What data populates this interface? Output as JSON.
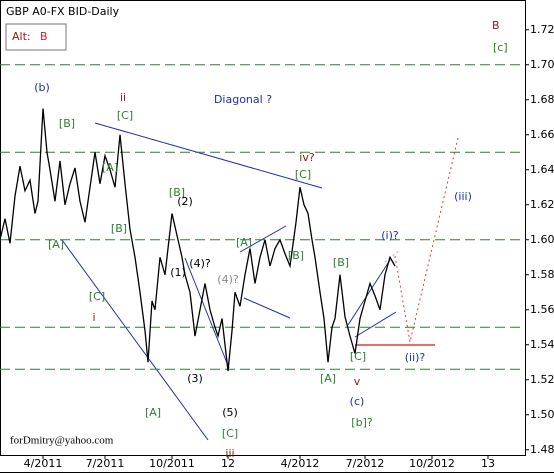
{
  "chart_data": {
    "type": "line",
    "title": "GBP A0-FX BID-Daily",
    "alt_label": "Alt:",
    "alt_wave": "B",
    "wave": "B",
    "wave_sub": "[c]",
    "footer": "forDmitry@yahoo.com",
    "color": "#000000",
    "x": [
      0,
      5,
      10,
      15,
      20,
      25,
      30,
      35,
      38,
      43,
      47,
      50,
      55,
      60,
      65,
      70,
      75,
      80,
      85,
      90,
      95,
      100,
      105,
      110,
      115,
      120,
      125,
      130,
      135,
      140,
      145,
      148,
      152,
      155,
      160,
      165,
      170,
      172,
      178,
      182,
      185,
      190,
      195,
      200,
      205,
      210,
      215,
      218,
      222,
      228,
      232,
      235,
      240,
      245,
      250,
      255,
      260,
      265,
      270,
      275,
      280,
      285,
      290,
      296,
      300,
      304,
      308,
      312,
      315,
      320,
      324,
      328,
      332,
      335,
      340,
      345,
      350,
      355,
      360,
      365,
      370,
      375,
      380,
      385,
      390,
      395
    ],
    "values": [
      1.6,
      1.612,
      1.598,
      1.625,
      1.642,
      1.628,
      1.634,
      1.615,
      1.622,
      1.675,
      1.65,
      1.64,
      1.622,
      1.645,
      1.62,
      1.632,
      1.641,
      1.622,
      1.61,
      1.63,
      1.65,
      1.632,
      1.648,
      1.64,
      1.63,
      1.66,
      1.632,
      1.606,
      1.59,
      1.57,
      1.548,
      1.53,
      1.565,
      1.56,
      1.59,
      1.58,
      1.605,
      1.615,
      1.6,
      1.59,
      1.58,
      1.57,
      1.545,
      1.56,
      1.575,
      1.56,
      1.55,
      1.545,
      1.555,
      1.525,
      1.548,
      1.57,
      1.562,
      1.58,
      1.595,
      1.575,
      1.59,
      1.6,
      1.585,
      1.595,
      1.6,
      1.592,
      1.585,
      1.61,
      1.63,
      1.62,
      1.615,
      1.6,
      1.59,
      1.57,
      1.555,
      1.53,
      1.55,
      1.555,
      1.58,
      1.556,
      1.545,
      1.535,
      1.555,
      1.565,
      1.575,
      1.568,
      1.56,
      1.58,
      1.59,
      1.585
    ],
    "xlim": [
      0,
      525
    ],
    "xticks": [
      {
        "value": 43,
        "label": "4/2011"
      },
      {
        "value": 105,
        "label": "7/2011"
      },
      {
        "value": 172,
        "label": "10/2011"
      },
      {
        "value": 228,
        "label": "12"
      },
      {
        "value": 300,
        "label": "4/2012"
      },
      {
        "value": 365,
        "label": "7/2012"
      },
      {
        "value": 432,
        "label": "10/2012"
      },
      {
        "value": 488,
        "label": "13"
      }
    ],
    "ylim": [
      1.477,
      1.737
    ],
    "yticks": [
      1.48,
      {
        "value": 1.5,
        "label": "1.50"
      },
      1.52,
      1.54,
      1.56,
      1.58,
      {
        "value": 1.6,
        "label": "1.60"
      },
      1.62,
      1.64,
      1.66,
      1.68,
      {
        "value": 1.7,
        "label": "1.70"
      },
      1.72
    ],
    "levels": [
      1.7,
      1.65,
      1.6,
      1.55,
      1.526
    ],
    "level_color": "#2e7d32",
    "annotations": [
      "(b)",
      "[B]",
      "[A]",
      "[C]",
      "ii",
      "Diagonal ?",
      "iv?",
      "[C]",
      "[B]",
      "(2)",
      "[A]",
      "[B]",
      "[A]",
      "[B]",
      "(i)?",
      "(iii)",
      "[B]",
      "(1)",
      "(4)?",
      "(4)?",
      "[C]",
      "i",
      "(ii)?",
      "(3)",
      "[C]",
      "[A]",
      "v",
      "(5)",
      "[A]",
      "(c)",
      "[C]",
      "[b]?",
      "iii"
    ]
  }
}
